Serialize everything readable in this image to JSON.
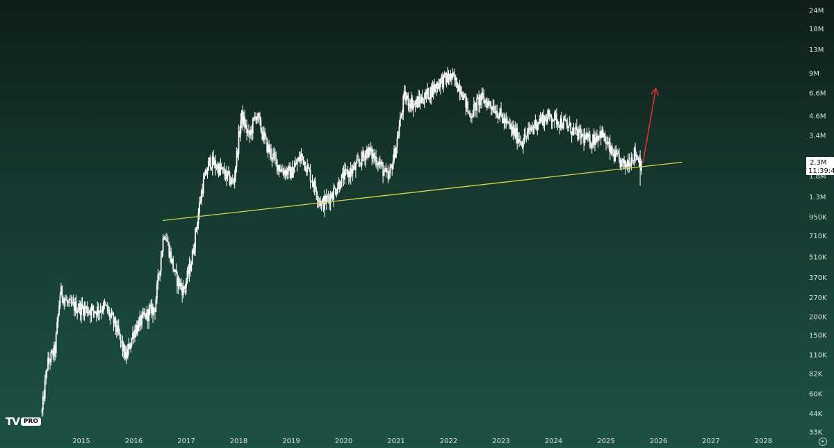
{
  "logo": {
    "mark": "TV",
    "badge": "PRO"
  },
  "icons": {
    "settings": "gear-icon"
  },
  "colors": {
    "candles": "#ffffff",
    "trendline": "#d6d64a",
    "arrow": "#e0303a",
    "axis_text": "#d8e2de",
    "price_tag_bg": "#ffffff"
  },
  "price_tag": {
    "price": "2.3M",
    "countdown": "11:39:4"
  },
  "chart_data": {
    "type": "line",
    "style": "candlestick",
    "y_scale": "log",
    "ylim": [
      33000,
      24000000
    ],
    "xlim": [
      2014.25,
      2028.6
    ],
    "grid": false,
    "x_ticks": [
      "2015",
      "2016",
      "2017",
      "2018",
      "2019",
      "2020",
      "2021",
      "2022",
      "2023",
      "2024",
      "2025",
      "2026",
      "2027",
      "2028"
    ],
    "y_ticks": [
      {
        "label": "24M",
        "value": 24000000
      },
      {
        "label": "18M",
        "value": 18000000
      },
      {
        "label": "13M",
        "value": 13000000
      },
      {
        "label": "9M",
        "value": 9000000
      },
      {
        "label": "6.6M",
        "value": 6600000
      },
      {
        "label": "4.6M",
        "value": 4600000
      },
      {
        "label": "3.4M",
        "value": 3400000
      },
      {
        "label": "2.3M",
        "value": 2300000
      },
      {
        "label": "1.8M",
        "value": 1800000
      },
      {
        "label": "1.3M",
        "value": 1300000
      },
      {
        "label": "950K",
        "value": 950000
      },
      {
        "label": "710K",
        "value": 710000
      },
      {
        "label": "510K",
        "value": 510000
      },
      {
        "label": "370K",
        "value": 370000
      },
      {
        "label": "270K",
        "value": 270000
      },
      {
        "label": "200K",
        "value": 200000
      },
      {
        "label": "150K",
        "value": 150000
      },
      {
        "label": "110K",
        "value": 110000
      },
      {
        "label": "82K",
        "value": 82000
      },
      {
        "label": "60K",
        "value": 60000
      },
      {
        "label": "44K",
        "value": 44000
      },
      {
        "label": "33K",
        "value": 33000
      }
    ],
    "series": [
      {
        "values": [
          [
            2014.25,
            45000
          ],
          [
            2014.35,
            95000
          ],
          [
            2014.5,
            120000
          ],
          [
            2014.6,
            300000
          ],
          [
            2014.75,
            240000
          ],
          [
            2015.0,
            230000
          ],
          [
            2015.25,
            220000
          ],
          [
            2015.45,
            235000
          ],
          [
            2015.65,
            175000
          ],
          [
            2015.85,
            105000
          ],
          [
            2016.0,
            160000
          ],
          [
            2016.2,
            200000
          ],
          [
            2016.4,
            230000
          ],
          [
            2016.58,
            780000
          ],
          [
            2016.8,
            370000
          ],
          [
            2016.95,
            300000
          ],
          [
            2017.1,
            480000
          ],
          [
            2017.3,
            1500000
          ],
          [
            2017.45,
            2300000
          ],
          [
            2017.65,
            2000000
          ],
          [
            2017.9,
            1600000
          ],
          [
            2018.05,
            4700000
          ],
          [
            2018.2,
            3300000
          ],
          [
            2018.33,
            4800000
          ],
          [
            2018.55,
            2800000
          ],
          [
            2018.8,
            2000000
          ],
          [
            2019.0,
            1900000
          ],
          [
            2019.2,
            2500000
          ],
          [
            2019.4,
            1700000
          ],
          [
            2019.58,
            1150000
          ],
          [
            2019.8,
            1400000
          ],
          [
            2020.0,
            1800000
          ],
          [
            2020.2,
            2000000
          ],
          [
            2020.45,
            2700000
          ],
          [
            2020.65,
            2300000
          ],
          [
            2020.85,
            1700000
          ],
          [
            2021.0,
            2900000
          ],
          [
            2021.15,
            6200000
          ],
          [
            2021.35,
            5500000
          ],
          [
            2021.6,
            6500000
          ],
          [
            2021.85,
            8000000
          ],
          [
            2022.05,
            8500000
          ],
          [
            2022.25,
            7000000
          ],
          [
            2022.4,
            4600000
          ],
          [
            2022.6,
            6100000
          ],
          [
            2022.85,
            5400000
          ],
          [
            2023.1,
            4100000
          ],
          [
            2023.4,
            3100000
          ],
          [
            2023.7,
            4300000
          ],
          [
            2023.95,
            4600000
          ],
          [
            2024.2,
            4100000
          ],
          [
            2024.45,
            3500000
          ],
          [
            2024.7,
            3100000
          ],
          [
            2024.9,
            3600000
          ],
          [
            2025.1,
            2600000
          ],
          [
            2025.35,
            2100000
          ],
          [
            2025.55,
            2600000
          ],
          [
            2025.68,
            2150000
          ]
        ]
      }
    ],
    "annotations": [
      {
        "type": "trendline",
        "from": [
          2016.55,
          900000
        ],
        "to": [
          2026.45,
          2240000
        ]
      },
      {
        "type": "arrow",
        "from": [
          2025.7,
          2200000
        ],
        "to": [
          2025.95,
          7100000
        ]
      }
    ]
  }
}
